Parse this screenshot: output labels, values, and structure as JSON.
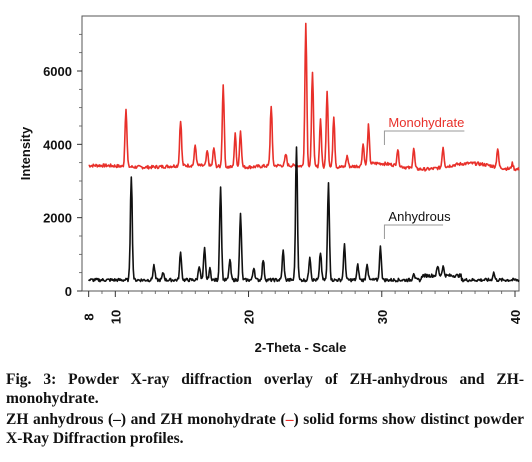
{
  "chart_data": {
    "type": "line",
    "xlabel": "2-Theta - Scale",
    "ylabel": "Intensity",
    "xlim": [
      7.5,
      40.3
    ],
    "ylim": [
      0,
      7500
    ],
    "x_ticks": [
      8,
      10,
      20,
      30,
      40
    ],
    "y_ticks": [
      0,
      2000,
      4000,
      6000
    ],
    "grid": false,
    "series": [
      {
        "name": "Monohydrate",
        "color": "#e8302a",
        "baseline": 3400,
        "peaks": [
          {
            "x": 10.8,
            "y": 5000
          },
          {
            "x": 14.9,
            "y": 4650
          },
          {
            "x": 16.0,
            "y": 3950
          },
          {
            "x": 16.9,
            "y": 3800
          },
          {
            "x": 17.4,
            "y": 3900
          },
          {
            "x": 18.1,
            "y": 5650
          },
          {
            "x": 19.0,
            "y": 4300
          },
          {
            "x": 19.4,
            "y": 4400
          },
          {
            "x": 21.7,
            "y": 5050
          },
          {
            "x": 22.8,
            "y": 3700
          },
          {
            "x": 24.3,
            "y": 7300
          },
          {
            "x": 24.8,
            "y": 6000
          },
          {
            "x": 25.4,
            "y": 4700
          },
          {
            "x": 25.9,
            "y": 5500
          },
          {
            "x": 26.4,
            "y": 4800
          },
          {
            "x": 27.4,
            "y": 3700
          },
          {
            "x": 28.6,
            "y": 4000
          },
          {
            "x": 29.0,
            "y": 4450
          },
          {
            "x": 31.2,
            "y": 3850
          },
          {
            "x": 32.4,
            "y": 3950
          },
          {
            "x": 34.6,
            "y": 3950
          },
          {
            "x": 38.7,
            "y": 3900
          },
          {
            "x": 39.8,
            "y": 3550
          }
        ],
        "label_anchor_x": 30.2
      },
      {
        "name": "Anhydrous",
        "color": "#111111",
        "baseline": 300,
        "peaks": [
          {
            "x": 11.2,
            "y": 3150
          },
          {
            "x": 12.9,
            "y": 700
          },
          {
            "x": 13.6,
            "y": 500
          },
          {
            "x": 14.9,
            "y": 1050
          },
          {
            "x": 16.3,
            "y": 700
          },
          {
            "x": 16.7,
            "y": 1150
          },
          {
            "x": 17.1,
            "y": 600
          },
          {
            "x": 17.9,
            "y": 2850
          },
          {
            "x": 18.6,
            "y": 850
          },
          {
            "x": 19.4,
            "y": 2100
          },
          {
            "x": 20.4,
            "y": 650
          },
          {
            "x": 21.1,
            "y": 850
          },
          {
            "x": 22.6,
            "y": 1100
          },
          {
            "x": 23.6,
            "y": 3950
          },
          {
            "x": 24.6,
            "y": 950
          },
          {
            "x": 25.4,
            "y": 1050
          },
          {
            "x": 26.0,
            "y": 2950
          },
          {
            "x": 27.2,
            "y": 1250
          },
          {
            "x": 28.2,
            "y": 700
          },
          {
            "x": 28.9,
            "y": 750
          },
          {
            "x": 29.9,
            "y": 1200
          },
          {
            "x": 32.4,
            "y": 500
          },
          {
            "x": 34.2,
            "y": 550
          },
          {
            "x": 34.6,
            "y": 550
          },
          {
            "x": 38.4,
            "y": 500
          }
        ],
        "label_anchor_x": 30.2
      }
    ]
  },
  "caption": {
    "line1": "Fig. 3: Powder X-ray diffraction overlay of ZH-anhydrous and ZH-monohydrate.",
    "line2_a": "ZH anhydrous (",
    "line2_dash_black": "–",
    "line2_b": ") and ZH monohydrate (",
    "line2_dash_red": "–",
    "line2_c": ") solid forms show distinct powder X-Ray Diffraction profiles."
  }
}
